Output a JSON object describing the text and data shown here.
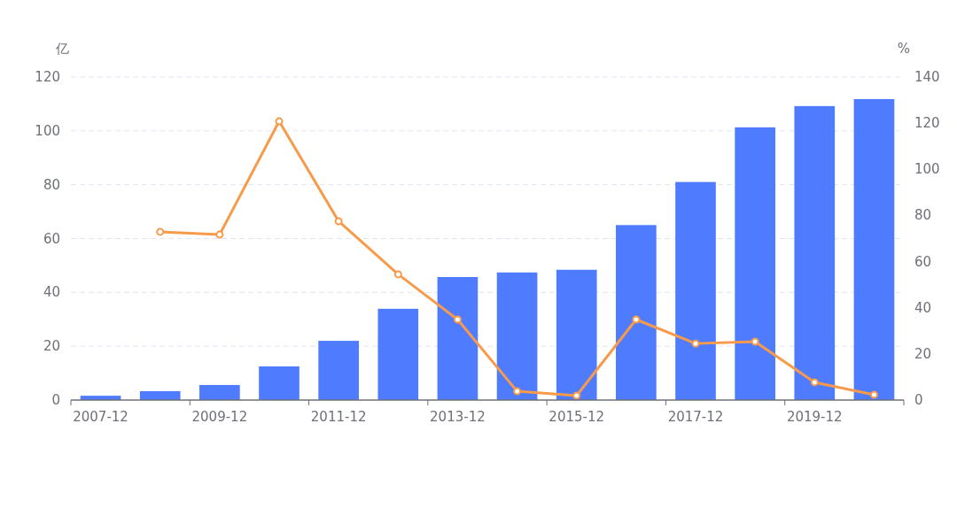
{
  "chart_data": {
    "type": "bar",
    "ylabel": "亿",
    "y2label": "%",
    "categories": [
      "2007-12",
      null,
      "2009-12",
      null,
      "2011-12",
      null,
      "2013-12",
      null,
      "2015-12",
      null,
      "2017-12",
      null,
      "2019-12",
      null
    ],
    "series": [
      {
        "color": "#4f7cff",
        "values": [
          1.6,
          3.3,
          5.6,
          12.5,
          22,
          33.9,
          45.7,
          47.4,
          48.4,
          65,
          81,
          101.3,
          109.2,
          111.8
        ]
      },
      {
        "type": "line",
        "axis": "y2",
        "color": "#f79a4a",
        "marker": "circle",
        "values": [
          null,
          72.9,
          71.7,
          120.8,
          77.5,
          54.5,
          34.9,
          3.8,
          1.9,
          34.9,
          24.5,
          25.3,
          7.7,
          2.3
        ]
      }
    ],
    "ylim": [
      0,
      120
    ],
    "yticks": [
      0,
      20,
      40,
      60,
      80,
      100,
      120
    ],
    "y2lim": [
      0,
      140
    ],
    "y2ticks": [
      0,
      20,
      40,
      60,
      80,
      100,
      120,
      140
    ],
    "grid": "y"
  }
}
